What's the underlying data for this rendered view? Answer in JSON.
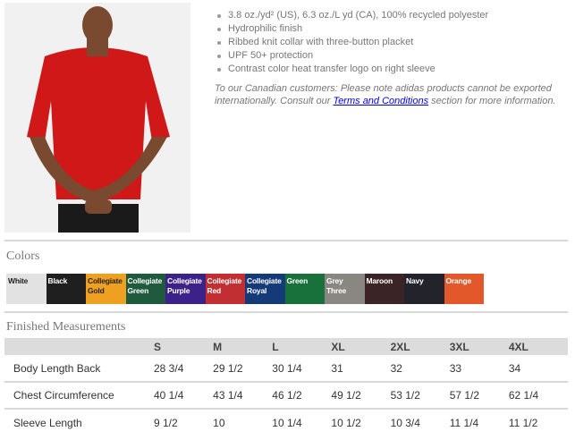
{
  "features": [
    "3.8 oz./yd² (US), 6.3 oz./L yd (CA), 100% recycled polyester",
    "Hydrophilic finish",
    "Ribbed knit collar with three-button placket",
    "UPF 50+ protection",
    "Contrast color heat transfer logo on right sleeve"
  ],
  "note": {
    "before": "To our Canadian customers: Please note adidas products cannot be exported internationally. Consult our ",
    "link": "Terms and Conditions",
    "after": " section for more information."
  },
  "colors_title": "Colors",
  "colors": [
    {
      "line1": "White",
      "line2": "",
      "hex": "#e2e2e2",
      "text": "#222"
    },
    {
      "line1": "Black",
      "line2": "",
      "hex": "#1f1f1f",
      "text": "#fff"
    },
    {
      "line1": "Collegiate",
      "line2": "Gold",
      "hex": "#eea020",
      "text": "#222"
    },
    {
      "line1": "Collegiate",
      "line2": "Green",
      "hex": "#1f5a3c",
      "text": "#fff"
    },
    {
      "line1": "Collegiate",
      "line2": "Purple",
      "hex": "#3c2288",
      "text": "#fff"
    },
    {
      "line1": "Collegiate",
      "line2": "Red",
      "hex": "#c12f33",
      "text": "#fff"
    },
    {
      "line1": "Collegiate",
      "line2": "Royal",
      "hex": "#153a78",
      "text": "#fff"
    },
    {
      "line1": "Green",
      "line2": "",
      "hex": "#18703a",
      "text": "#fff"
    },
    {
      "line1": "Grey",
      "line2": "Three",
      "hex": "#8a8782",
      "text": "#fff"
    },
    {
      "line1": "Maroon",
      "line2": "",
      "hex": "#3a2425",
      "text": "#fff"
    },
    {
      "line1": "Navy",
      "line2": "",
      "hex": "#23232b",
      "text": "#fff"
    },
    {
      "line1": "Orange",
      "line2": "",
      "hex": "#e2582a",
      "text": "#fff"
    }
  ],
  "measurements_title": "Finished Measurements",
  "table": {
    "headers": [
      "",
      "S",
      "M",
      "L",
      "XL",
      "2XL",
      "3XL",
      "4XL"
    ],
    "rows": [
      [
        "Body Length Back",
        "28 3/4",
        "29 1/2",
        "30 1/4",
        "31",
        "32",
        "33",
        "34"
      ],
      [
        "Chest Circumference",
        "40 1/4",
        "43 1/4",
        "46 1/2",
        "49 1/2",
        "53 1/2",
        "57 1/2",
        "62 1/4"
      ],
      [
        "Sleeve Length",
        "9 1/2",
        "10",
        "10 1/4",
        "10 1/2",
        "10 3/4",
        "11 1/4",
        "11 1/2"
      ]
    ]
  }
}
